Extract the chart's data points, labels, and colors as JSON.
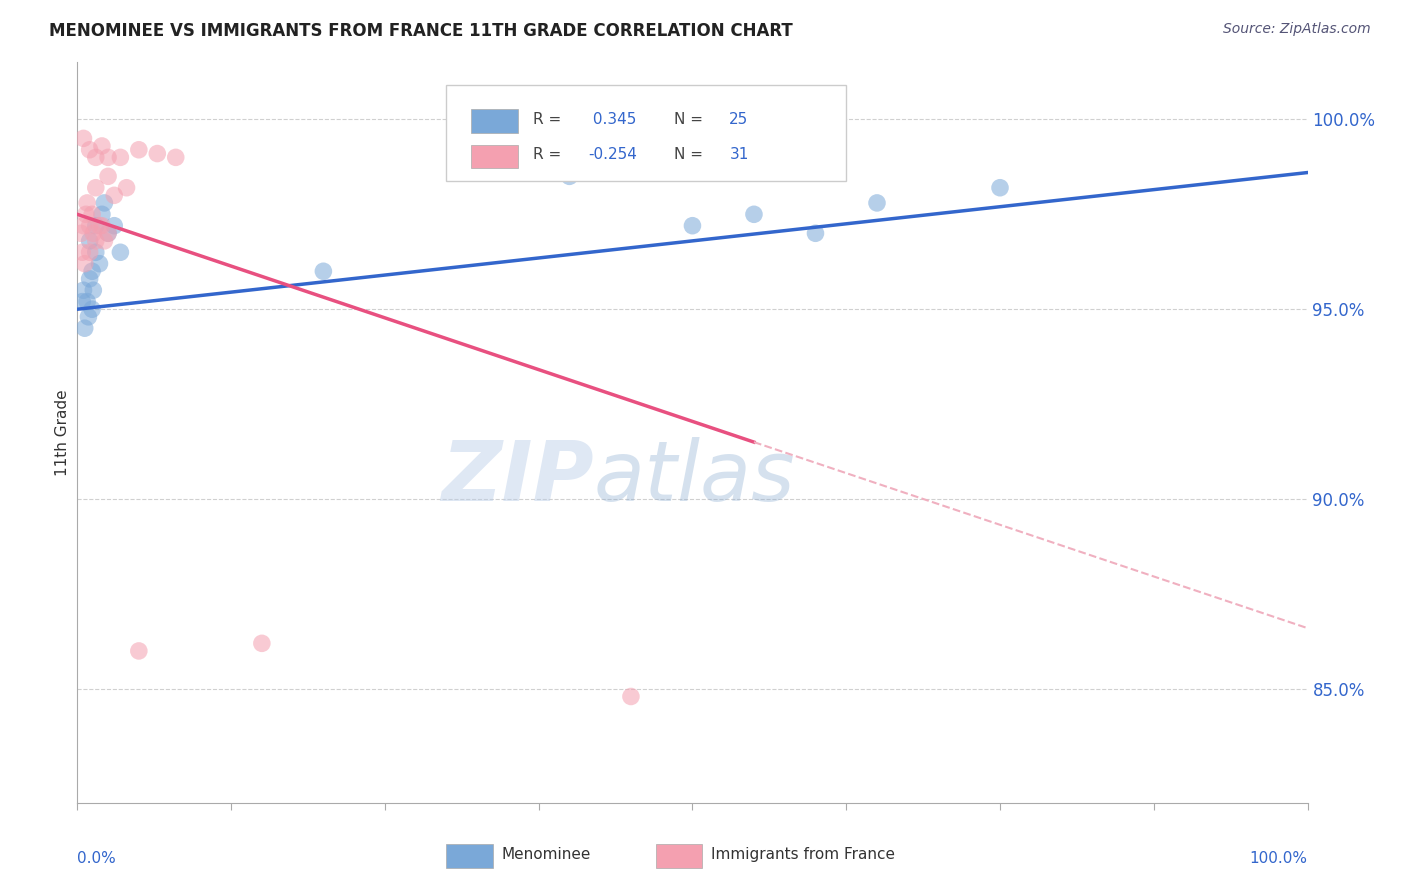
{
  "title": "MENOMINEE VS IMMIGRANTS FROM FRANCE 11TH GRADE CORRELATION CHART",
  "source": "Source: ZipAtlas.com",
  "ylabel": "11th Grade",
  "blue_R": 0.345,
  "blue_N": 25,
  "pink_R": -0.254,
  "pink_N": 31,
  "blue_color": "#7aa8d8",
  "pink_color": "#f4a0b0",
  "blue_line_color": "#3366cc",
  "pink_line_color": "#e85080",
  "pink_dash_color": "#f0b0c0",
  "legend_blue_label": "Menominee",
  "legend_pink_label": "Immigrants from France",
  "background_color": "#ffffff",
  "watermark_zip": "ZIP",
  "watermark_atlas": "atlas",
  "blue_line_x0": 0,
  "blue_line_y0": 95.0,
  "blue_line_x1": 100,
  "blue_line_y1": 98.6,
  "pink_solid_x0": 0,
  "pink_solid_y0": 97.5,
  "pink_solid_x1": 55,
  "pink_solid_y1": 91.5,
  "pink_dash_x0": 55,
  "pink_dash_y0": 91.5,
  "pink_dash_x1": 100,
  "pink_dash_y1": 86.6,
  "blue_points_x": [
    1.0,
    1.5,
    2.0,
    2.5,
    3.0,
    3.5,
    1.2,
    1.8,
    2.2,
    0.5,
    0.8,
    1.0,
    1.5,
    0.6,
    1.2,
    0.4,
    0.9,
    1.3,
    40.0,
    55.0,
    65.0,
    75.0,
    60.0,
    50.0,
    20.0
  ],
  "blue_points_y": [
    96.8,
    97.2,
    97.5,
    97.0,
    97.2,
    96.5,
    96.0,
    96.2,
    97.8,
    95.5,
    95.2,
    95.8,
    96.5,
    94.5,
    95.0,
    95.2,
    94.8,
    95.5,
    98.5,
    97.5,
    97.8,
    98.2,
    97.0,
    97.2,
    96.0
  ],
  "pink_points_x": [
    0.5,
    1.0,
    1.5,
    2.0,
    2.5,
    3.5,
    5.0,
    6.5,
    8.0,
    1.5,
    2.5,
    3.0,
    4.0,
    0.8,
    1.2,
    0.3,
    0.5,
    0.7,
    1.0,
    1.3,
    1.5,
    2.0,
    2.5,
    0.4,
    1.8,
    2.2,
    0.6,
    45.0,
    5.0,
    15.0,
    1.0
  ],
  "pink_points_y": [
    99.5,
    99.2,
    99.0,
    99.3,
    99.0,
    99.0,
    99.2,
    99.1,
    99.0,
    98.2,
    98.5,
    98.0,
    98.2,
    97.8,
    97.5,
    97.0,
    97.2,
    97.5,
    97.2,
    97.0,
    96.8,
    97.2,
    97.0,
    96.5,
    97.2,
    96.8,
    96.2,
    84.8,
    86.0,
    86.2,
    96.5
  ],
  "xmin": 0,
  "xmax": 100,
  "ymin": 82.0,
  "ymax": 101.5,
  "yticks": [
    85.0,
    90.0,
    95.0,
    100.0
  ],
  "grid_color": "#d0d0d0",
  "axis_color": "#aaaaaa",
  "tick_color": "#aaaaaa",
  "label_color": "#3366cc",
  "text_color": "#333333"
}
